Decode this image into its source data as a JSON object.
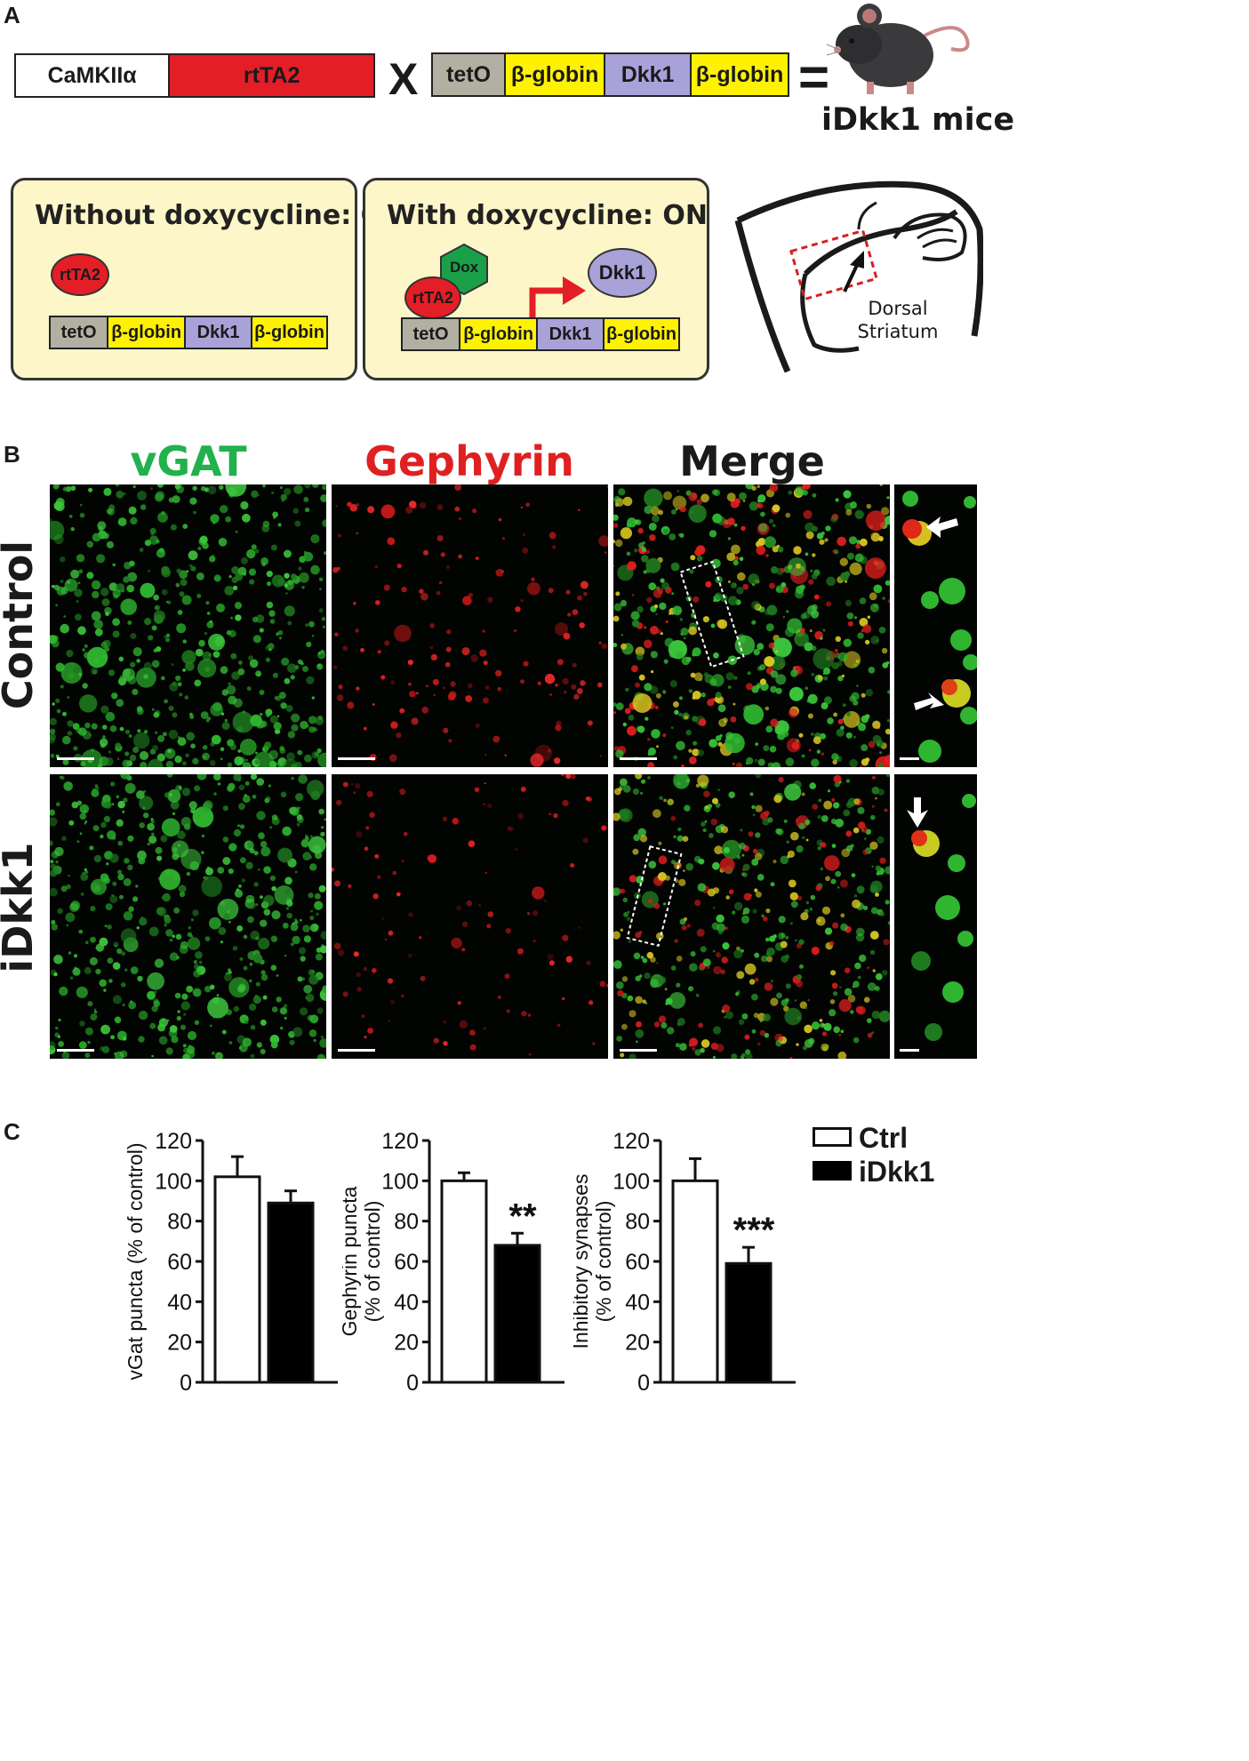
{
  "panels": {
    "a": "A",
    "b": "B",
    "c": "C"
  },
  "construct": {
    "left": [
      "CaMKIIα",
      "rtTA2"
    ],
    "cross": "X",
    "right": [
      "tetO",
      "β-globin",
      "Dkk1",
      "β-globin"
    ],
    "equals": "=",
    "mice_label": "iDkk1 mice"
  },
  "off_box": {
    "title": "Without doxycycline: OFF",
    "protein": "rtTA2",
    "strip": [
      "tetO",
      "β-globin",
      "Dkk1",
      "β-globin"
    ]
  },
  "on_box": {
    "title": "With doxycycline: ON",
    "protein": "rtTA2",
    "drug": "Dox",
    "product": "Dkk1",
    "strip": [
      "tetO",
      "β-globin",
      "Dkk1",
      "β-globin"
    ]
  },
  "brain": {
    "label_line1": "Dorsal",
    "label_line2": "Striatum"
  },
  "panel_b": {
    "columns": [
      "vGAT",
      "Gephyrin",
      "Merge"
    ],
    "rows": [
      "Control",
      "iDkk1"
    ],
    "colors": {
      "vgat": "#22b14c",
      "gephyrin": "#e02020",
      "merge": "#1a1a1a"
    }
  },
  "legend": {
    "ctrl": "Ctrl",
    "idkk1": "iDkk1"
  },
  "chart_data": [
    {
      "type": "bar",
      "categories": [
        "Ctrl",
        "iDkk1"
      ],
      "values": [
        102,
        89
      ],
      "errors": [
        10,
        6
      ],
      "ylabel": "vGat puncta (% of control)",
      "ylim": [
        0,
        120
      ],
      "yticks": [
        "0",
        "20",
        "40",
        "60",
        "80",
        "100",
        "120"
      ],
      "annotation": ""
    },
    {
      "type": "bar",
      "categories": [
        "Ctrl",
        "iDkk1"
      ],
      "values": [
        100,
        68
      ],
      "errors": [
        4,
        6
      ],
      "ylabel": "Gephyrin puncta (% of control)",
      "ylabel_lines": [
        "Gephyrin puncta",
        "(% of control)"
      ],
      "ylim": [
        0,
        120
      ],
      "yticks": [
        "0",
        "20",
        "40",
        "60",
        "80",
        "100",
        "120"
      ],
      "annotation": "**"
    },
    {
      "type": "bar",
      "categories": [
        "Ctrl",
        "iDkk1"
      ],
      "values": [
        100,
        59
      ],
      "errors": [
        11,
        8
      ],
      "ylabel": "Inhibitory synapses (% of control)",
      "ylabel_lines": [
        "Inhibitory synapses",
        "(% of control)"
      ],
      "ylim": [
        0,
        120
      ],
      "yticks": [
        "0",
        "20",
        "40",
        "60",
        "80",
        "100",
        "120"
      ],
      "annotation": "***"
    }
  ]
}
